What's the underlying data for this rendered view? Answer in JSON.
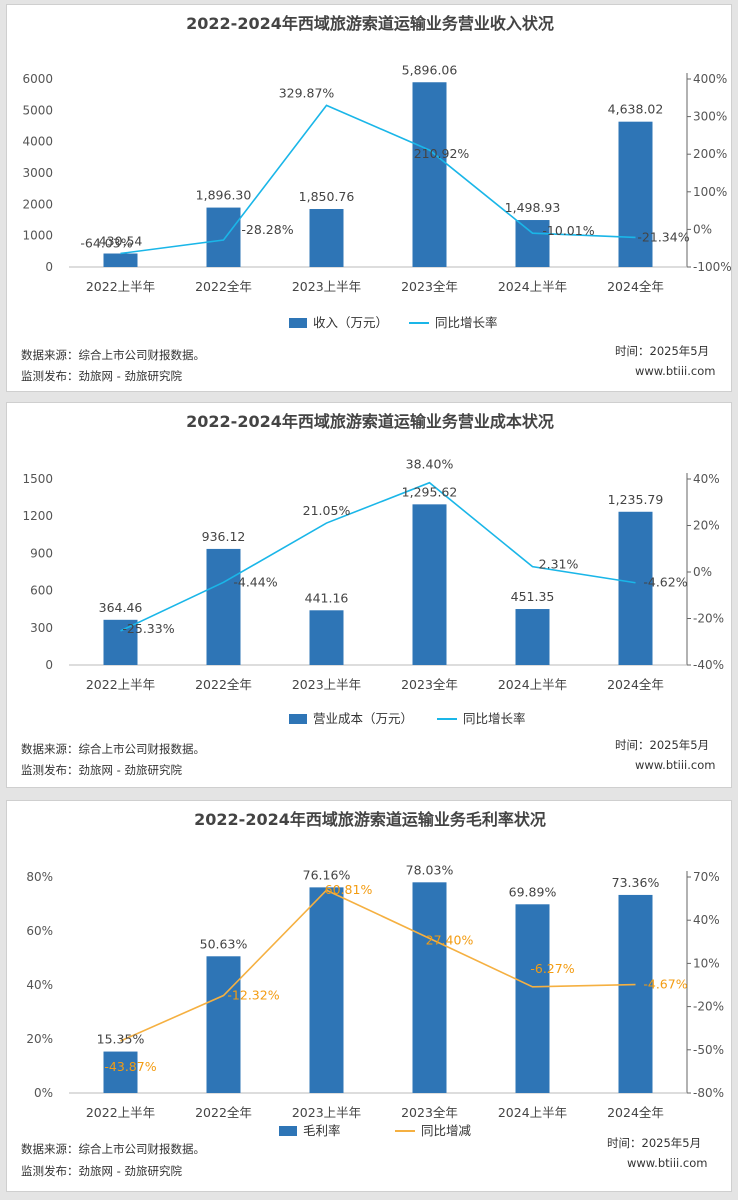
{
  "colors": {
    "bar": "#2e75b6",
    "line1": "#1ab6e8",
    "line3": "#f5b041",
    "pctLabel3": "#f39c12"
  },
  "charts": [
    {
      "title": "2022-2024年西域旅游索道运输业务营业收入状况",
      "legend": {
        "bar": "收入（万元）",
        "line": "同比增长率"
      },
      "source": "数据来源：综合上市公司财报数据。",
      "publisher": "监测发布：劲旅网 - 劲旅研究院",
      "time": "时间：2025年5月",
      "site": "www.btiii.com",
      "categories": [
        "2022上半年",
        "2022全年",
        "2023上半年",
        "2023全年",
        "2024上半年",
        "2024全年"
      ],
      "y_ticks": [
        "0",
        "1000",
        "2000",
        "3000",
        "4000",
        "5000",
        "6000"
      ],
      "y2_ticks": [
        "-100%",
        "0%",
        "100%",
        "200%",
        "300%",
        "400%"
      ],
      "bar_labels": [
        "430.54",
        "1,896.30",
        "1,850.76",
        "5,896.06",
        "1,498.93",
        "4,638.02"
      ],
      "line_labels": [
        "-64.03%",
        "-28.28%",
        "329.87%",
        "210.92%",
        "-10.01%",
        "-21.34%"
      ]
    },
    {
      "title": "2022-2024年西域旅游索道运输业务营业成本状况",
      "legend": {
        "bar": "营业成本（万元）",
        "line": "同比增长率"
      },
      "source": "数据来源：综合上市公司财报数据。",
      "publisher": "监测发布：劲旅网 - 劲旅研究院",
      "time": "时间：2025年5月",
      "site": "www.btiii.com",
      "categories": [
        "2022上半年",
        "2022全年",
        "2023上半年",
        "2023全年",
        "2024上半年",
        "2024全年"
      ],
      "y_ticks": [
        "0",
        "300",
        "600",
        "900",
        "1200",
        "1500"
      ],
      "y2_ticks": [
        "-40%",
        "-20%",
        "0%",
        "20%",
        "40%"
      ],
      "bar_labels": [
        "364.46",
        "936.12",
        "441.16",
        "1,295.62",
        "451.35",
        "1,235.79"
      ],
      "line_labels": [
        "-25.33%",
        "-4.44%",
        "21.05%",
        "38.40%",
        "2.31%",
        "-4.62%"
      ]
    },
    {
      "title": "2022-2024年西域旅游索道运输业务毛利率状况",
      "legend": {
        "bar": "毛利率",
        "line": "同比增减"
      },
      "source": "数据来源：综合上市公司财报数据。",
      "publisher": "监测发布：劲旅网 - 劲旅研究院",
      "time": "时间：2025年5月",
      "site": "www.btiii.com",
      "categories": [
        "2022上半年",
        "2022全年",
        "2023上半年",
        "2023全年",
        "2024上半年",
        "2024全年"
      ],
      "y_ticks": [
        "0%",
        "20%",
        "40%",
        "60%",
        "80%"
      ],
      "y2_ticks": [
        "-80%",
        "-50%",
        "-20%",
        "10%",
        "40%",
        "70%"
      ],
      "bar_labels": [
        "15.35%",
        "50.63%",
        "76.16%",
        "78.03%",
        "69.89%",
        "73.36%"
      ],
      "line_labels": [
        "-43.87%",
        "-12.32%",
        "60.81%",
        "27.40%",
        "-6.27%",
        "-4.67%"
      ]
    }
  ],
  "chart_data": [
    {
      "type": "bar",
      "title": "2022-2024年西域旅游索道运输业务营业收入状况",
      "categories": [
        "2022上半年",
        "2022全年",
        "2023上半年",
        "2023全年",
        "2024上半年",
        "2024全年"
      ],
      "series": [
        {
          "name": "收入（万元）",
          "type": "bar",
          "axis": "left",
          "values": [
            430.54,
            1896.3,
            1850.76,
            5896.06,
            1498.93,
            4638.02
          ]
        },
        {
          "name": "同比增长率",
          "type": "line",
          "axis": "right",
          "values": [
            -64.03,
            -28.28,
            329.87,
            210.92,
            -10.01,
            -21.34
          ]
        }
      ],
      "ylim": [
        0,
        6000
      ],
      "y2lim": [
        -100,
        400
      ],
      "legend": "bottom"
    },
    {
      "type": "bar",
      "title": "2022-2024年西域旅游索道运输业务营业成本状况",
      "categories": [
        "2022上半年",
        "2022全年",
        "2023上半年",
        "2023全年",
        "2024上半年",
        "2024全年"
      ],
      "series": [
        {
          "name": "营业成本（万元）",
          "type": "bar",
          "axis": "left",
          "values": [
            364.46,
            936.12,
            441.16,
            1295.62,
            451.35,
            1235.79
          ]
        },
        {
          "name": "同比增长率",
          "type": "line",
          "axis": "right",
          "values": [
            -25.33,
            -4.44,
            21.05,
            38.4,
            2.31,
            -4.62
          ]
        }
      ],
      "ylim": [
        0,
        1500
      ],
      "y2lim": [
        -40,
        40
      ],
      "legend": "bottom"
    },
    {
      "type": "bar",
      "title": "2022-2024年西域旅游索道运输业务毛利率状况",
      "categories": [
        "2022上半年",
        "2022全年",
        "2023上半年",
        "2023全年",
        "2024上半年",
        "2024全年"
      ],
      "series": [
        {
          "name": "毛利率",
          "type": "bar",
          "axis": "left",
          "values": [
            15.35,
            50.63,
            76.16,
            78.03,
            69.89,
            73.36
          ]
        },
        {
          "name": "同比增减",
          "type": "line",
          "axis": "right",
          "values": [
            -43.87,
            -12.32,
            60.81,
            27.4,
            -6.27,
            -4.67
          ]
        }
      ],
      "ylim": [
        0,
        80
      ],
      "y2lim": [
        -80,
        70
      ],
      "legend": "bottom"
    }
  ]
}
